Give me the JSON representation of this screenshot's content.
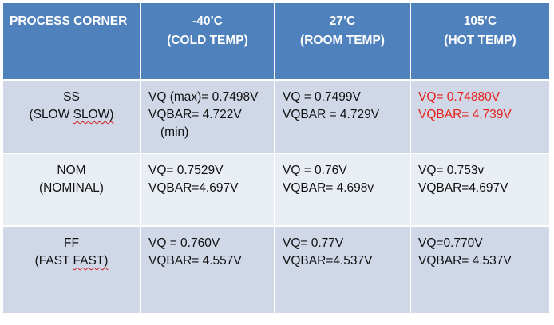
{
  "table": {
    "header": {
      "col0": "PROCESS CORNER",
      "temps": [
        {
          "temp": "-40’C",
          "label": "(COLD TEMP)"
        },
        {
          "temp": "27’C",
          "label": "(ROOM TEMP)"
        },
        {
          "temp": "105’C",
          "label": "(HOT TEMP)"
        }
      ]
    },
    "rows": [
      {
        "corner": "SS",
        "corner_desc_a": "(SLOW",
        "corner_desc_b": "SLOW)",
        "cold": {
          "l1": "VQ (max)= 0.7498V",
          "l2": "VQBAR= 4.722V",
          "l3": "(min)"
        },
        "room": {
          "l1": "VQ  = 0.7499V",
          "l2": "VQBAR = 4.729V"
        },
        "hot": {
          "l1": "VQ=  0.74880V",
          "l2": "VQBAR= 4.739V",
          "color": "#e8201a"
        }
      },
      {
        "corner": "NOM",
        "corner_desc": "(NOMINAL)",
        "cold": {
          "l1": "VQ=  0.7529V",
          "l2": "VQBAR=4.697V"
        },
        "room": {
          "l1": "VQ = 0.76V",
          "l2": "VQBAR= 4.698v"
        },
        "hot": {
          "l1": "VQ= 0.753v",
          "l2": "VQBAR=4.697V"
        }
      },
      {
        "corner": "FF",
        "corner_desc_a": "(FAST",
        "corner_desc_b": "FAST)",
        "cold": {
          "l1": "VQ = 0.760V",
          "l2": "VQBAR= 4.557V"
        },
        "room": {
          "l1": "VQ= 0.77V",
          "l2": "VQBAR=4.537V"
        },
        "hot": {
          "l1": "VQ=0.770V",
          "l2": "VQBAR= 4.537V"
        }
      }
    ]
  }
}
